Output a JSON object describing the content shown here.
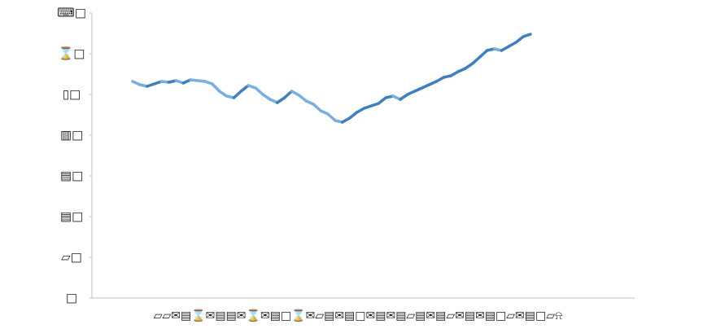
{
  "chart_data": {
    "type": "line",
    "xlabel": "▱▱✉▤⌛✉▤▤✉⌛✉▤□⌛✉▱▤✉▤□✉▤✉▤▱▤✉▤▱✉▤✉▤□▱✉▤□▱⍾",
    "values": [
      5.32,
      5.24,
      5.2,
      5.26,
      5.32,
      5.3,
      5.34,
      5.28,
      5.36,
      5.34,
      5.32,
      5.26,
      5.08,
      4.96,
      4.92,
      5.08,
      5.22,
      5.16,
      5,
      4.88,
      4.8,
      4.92,
      5.08,
      4.98,
      4.84,
      4.76,
      4.6,
      4.52,
      4.36,
      4.32,
      4.42,
      4.56,
      4.66,
      4.72,
      4.78,
      4.92,
      4.96,
      4.88,
      5,
      5.08,
      5.16,
      5.24,
      5.32,
      5.42,
      5.46,
      5.56,
      5.64,
      5.76,
      5.92,
      6.08,
      6.12,
      6.08,
      6.18,
      6.28,
      6.42,
      6.48
    ],
    "color_up": "#3f7ebf",
    "color_down": "#7aaee0",
    "ylim": [
      0,
      7
    ],
    "yticks": [
      {
        "value": 0,
        "label": "□"
      },
      {
        "value": 1,
        "label": "▱□"
      },
      {
        "value": 2,
        "label": "▤□"
      },
      {
        "value": 3,
        "label": "▤□"
      },
      {
        "value": 4,
        "label": "▥□"
      },
      {
        "value": 5,
        "label": "▯□"
      },
      {
        "value": 6,
        "label": "⌛□"
      },
      {
        "value": 7,
        "label": "⌨□"
      }
    ]
  }
}
